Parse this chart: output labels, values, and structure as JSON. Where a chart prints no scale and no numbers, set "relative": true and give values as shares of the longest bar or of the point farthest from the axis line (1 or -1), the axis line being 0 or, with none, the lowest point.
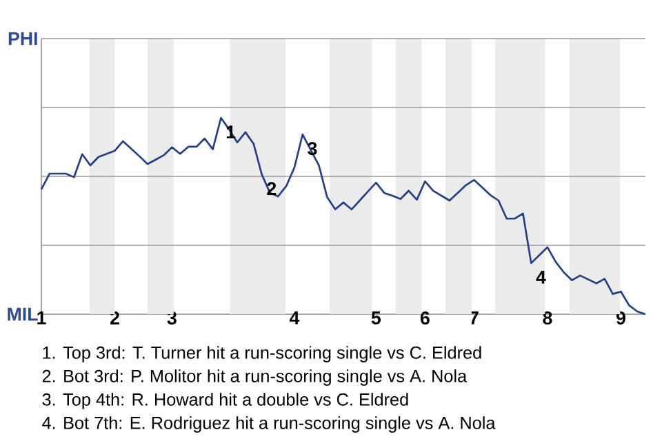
{
  "chart_data": {
    "type": "line",
    "relative": true,
    "categories": [
      "1",
      null,
      null,
      null,
      null,
      null,
      null,
      null,
      null,
      "2",
      null,
      null,
      null,
      null,
      null,
      null,
      "3",
      null,
      null,
      null,
      null,
      null,
      null,
      null,
      null,
      null,
      null,
      null,
      null,
      null,
      null,
      "4",
      null,
      null,
      null,
      null,
      null,
      null,
      null,
      null,
      null,
      "5",
      null,
      null,
      null,
      null,
      null,
      "6",
      null,
      null,
      null,
      null,
      null,
      "7",
      null,
      null,
      null,
      null,
      null,
      null,
      null,
      null,
      "8",
      null,
      null,
      null,
      null,
      null,
      null,
      null,
      null,
      "9",
      null,
      null,
      null
    ],
    "series": [
      {
        "color": "#22408a",
        "values": [
          0.636,
          0.716,
          0.716,
          0.716,
          0.698,
          0.815,
          0.758,
          0.801,
          0.817,
          0.833,
          0.881,
          0.843,
          0.805,
          0.765,
          0.787,
          0.81,
          0.85,
          0.817,
          0.853,
          0.853,
          0.895,
          0.84,
          1,
          0.941,
          0.875,
          0.927,
          0.868,
          0.712,
          0.618,
          0.6,
          0.653,
          0.747,
          0.916,
          0.837,
          0.758,
          0.597,
          0.534,
          0.569,
          0.534,
          0.579,
          0.625,
          0.67,
          0.618,
          0.604,
          0.587,
          0.629,
          0.583,
          0.677,
          0.629,
          0.604,
          0.579,
          0.618,
          0.657,
          0.684,
          0.646,
          0.607,
          0.579,
          0.487,
          0.487,
          0.513,
          0.26,
          0.301,
          0.341,
          0.267,
          0.213,
          0.173,
          0.197,
          0.177,
          0.157,
          0.18,
          0.103,
          0.115,
          0.045,
          0.014,
          0
        ]
      }
    ],
    "marker": "none",
    "line_style": "solid",
    "ref_lines": [
      {
        "axis": "y",
        "value": 0.351,
        "color": "#999999"
      },
      {
        "axis": "y",
        "value": 0.702,
        "color": "#999999"
      },
      {
        "axis": "y",
        "value": 1.053,
        "color": "#999999"
      },
      {
        "axis": "y",
        "value": 1.404,
        "color": "#999999"
      }
    ],
    "annotations": [
      "PHI",
      "MIL",
      "1",
      "2",
      "3",
      "4",
      "1. Top 3rd: T. Turner hit a run-scoring single vs C. Eldred",
      "2. Bot 3rd: P. Molitor hit a run-scoring single vs A. Nola",
      "3. Top 4th: R. Howard hit a double vs C. Eldred",
      "4. Bot 7th: E. Rodriguez hit a run-scoring single vs A. Nola"
    ]
  }
}
